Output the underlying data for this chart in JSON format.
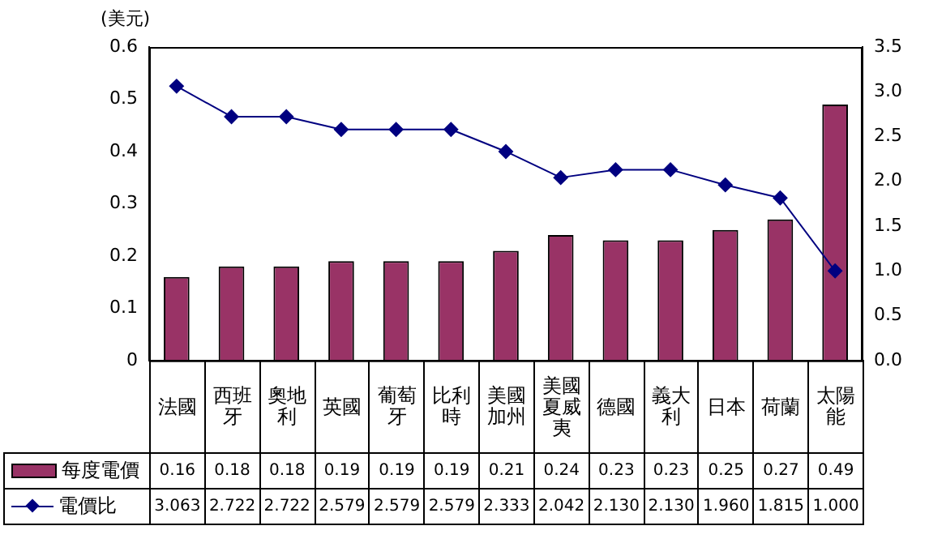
{
  "chart_data": {
    "type": "bar",
    "ylabel": "(美元)",
    "categories": [
      "法國",
      "西班牙",
      "奧地利",
      "英國",
      "葡萄牙",
      "比利時",
      "美國加州",
      "美國夏威夷",
      "德國",
      "義大利",
      "日本",
      "荷蘭",
      "太陽能"
    ],
    "series": [
      {
        "name": "每度電價",
        "color": "#993366",
        "values": [
          0.16,
          0.18,
          0.18,
          0.19,
          0.19,
          0.19,
          0.21,
          0.24,
          0.23,
          0.23,
          0.25,
          0.27,
          0.49
        ],
        "value_labels": [
          "0.16",
          "0.18",
          "0.18",
          "0.19",
          "0.19",
          "0.19",
          "0.21",
          "0.24",
          "0.23",
          "0.23",
          "0.25",
          "0.27",
          "0.49"
        ]
      },
      {
        "name": "電價比",
        "type": "line",
        "axis": "y2",
        "color": "#000080",
        "values": [
          3.063,
          2.722,
          2.722,
          2.579,
          2.579,
          2.579,
          2.333,
          2.042,
          2.13,
          2.13,
          1.96,
          1.815,
          1.0
        ],
        "value_labels": [
          "3.063",
          "2.722",
          "2.722",
          "2.579",
          "2.579",
          "2.579",
          "2.333",
          "2.042",
          "2.130",
          "2.130",
          "1.960",
          "1.815",
          "1.000"
        ]
      }
    ],
    "ylim": [
      0,
      0.6
    ],
    "yticks": [
      0,
      0.1,
      0.2,
      0.3,
      0.4,
      0.5,
      0.6
    ],
    "y2lim": [
      0,
      3.5
    ],
    "y2ticks": [
      {
        "value": 0,
        "label": "0.0"
      },
      {
        "value": 0.5,
        "label": "0.5"
      },
      {
        "value": 1,
        "label": "1.0"
      },
      {
        "value": 1.5,
        "label": "1.5"
      },
      {
        "value": 2,
        "label": "2.0"
      },
      {
        "value": 2.5,
        "label": "2.5"
      },
      {
        "value": 3,
        "label": "3.0"
      },
      {
        "value": 3.5,
        "label": "3.5"
      }
    ],
    "grid": false,
    "legend": "bottom",
    "marker": "diamond",
    "line_style": "solid"
  }
}
